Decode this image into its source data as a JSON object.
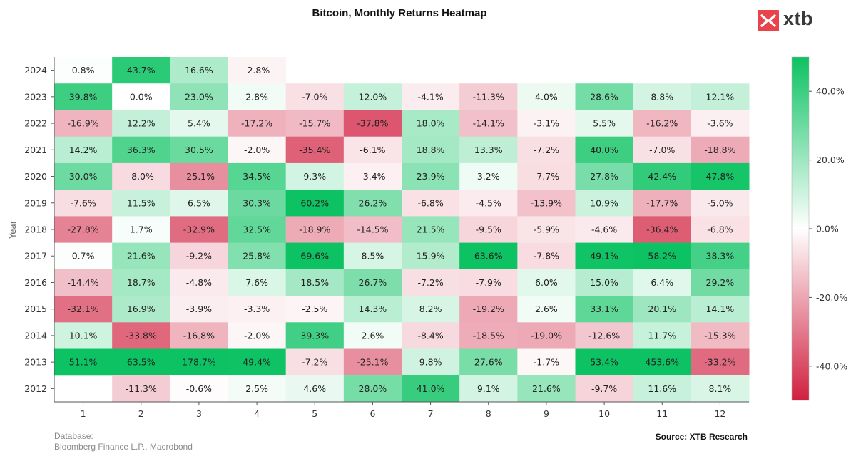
{
  "brand": {
    "logo_text": "xtb",
    "logo_color": "#e9434b"
  },
  "footer": {
    "database_label": "Database:",
    "database_value": "Bloomberg Finance L.P., Macrobond",
    "source": "Source: XTB Research"
  },
  "chart_data": {
    "type": "heatmap",
    "title": "Bitcoin, Monthly Returns Heatmap",
    "xlabel": "",
    "ylabel": "Year",
    "x_categories": [
      "1",
      "2",
      "3",
      "4",
      "5",
      "6",
      "7",
      "8",
      "9",
      "10",
      "11",
      "12"
    ],
    "y_categories": [
      "2024",
      "2023",
      "2022",
      "2021",
      "2020",
      "2019",
      "2018",
      "2017",
      "2016",
      "2015",
      "2014",
      "2013",
      "2012"
    ],
    "values": [
      [
        0.8,
        43.7,
        16.6,
        -2.8,
        null,
        null,
        null,
        null,
        null,
        null,
        null,
        null
      ],
      [
        39.8,
        0.0,
        23.0,
        2.8,
        -7.0,
        12.0,
        -4.1,
        -11.3,
        4.0,
        28.6,
        8.8,
        12.1
      ],
      [
        -16.9,
        12.2,
        5.4,
        -17.2,
        -15.7,
        -37.8,
        18.0,
        -14.1,
        -3.1,
        5.5,
        -16.2,
        -3.6
      ],
      [
        14.2,
        36.3,
        30.5,
        -2.0,
        -35.4,
        -6.1,
        18.8,
        13.3,
        -7.2,
        40.0,
        -7.0,
        -18.8
      ],
      [
        30.0,
        -8.0,
        -25.1,
        34.5,
        9.3,
        -3.4,
        23.9,
        3.2,
        -7.7,
        27.8,
        42.4,
        47.8
      ],
      [
        -7.6,
        11.5,
        6.5,
        30.3,
        60.2,
        26.2,
        -6.8,
        -4.5,
        -13.9,
        10.9,
        -17.7,
        -5.0
      ],
      [
        -27.8,
        1.7,
        -32.9,
        32.5,
        -18.9,
        -14.5,
        21.5,
        -9.5,
        -5.9,
        -4.6,
        -36.4,
        -6.8
      ],
      [
        0.7,
        21.6,
        -9.2,
        25.8,
        69.6,
        8.5,
        15.9,
        63.6,
        -7.8,
        49.1,
        58.2,
        38.3
      ],
      [
        -14.4,
        18.7,
        -4.8,
        7.6,
        18.5,
        26.7,
        -7.2,
        -7.9,
        6.0,
        15.0,
        6.4,
        29.2
      ],
      [
        -32.1,
        16.9,
        -3.9,
        -3.3,
        -2.5,
        14.3,
        8.2,
        -19.2,
        2.6,
        33.1,
        20.1,
        14.1
      ],
      [
        10.1,
        -33.8,
        -16.8,
        -2.0,
        39.3,
        2.6,
        -8.4,
        -18.5,
        -19.0,
        -12.6,
        11.7,
        -15.3
      ],
      [
        51.1,
        63.5,
        178.7,
        49.4,
        -7.2,
        -25.1,
        9.8,
        27.6,
        -1.7,
        53.4,
        453.6,
        -33.2
      ],
      [
        null,
        -11.3,
        -0.6,
        2.5,
        4.6,
        28.0,
        41.0,
        9.1,
        21.6,
        -9.7,
        11.6,
        8.1
      ]
    ],
    "value_suffix": "%",
    "colorscale": {
      "min": -50,
      "max": 50,
      "neg_color": "#d0203f",
      "mid_color": "#ffffff",
      "pos_color": "#0cc262"
    },
    "colorbar_ticks": [
      "40.0%",
      "20.0%",
      "0.0%",
      "-20.0%",
      "-40.0%"
    ],
    "colorbar_tick_values": [
      40,
      20,
      0,
      -20,
      -40
    ],
    "grid": false
  }
}
